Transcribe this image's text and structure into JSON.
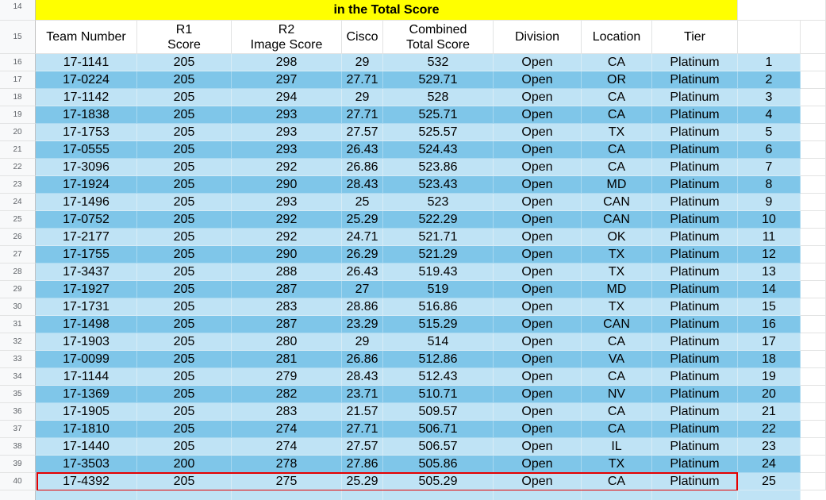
{
  "sheet": {
    "top_banner": "in the Total Score",
    "header_row_number": "15",
    "banner_row_number": "14",
    "headers": [
      "Team Number",
      "R1\nScore",
      "R2\nImage Score",
      "Cisco",
      "Combined\nTotal Score",
      "Division",
      "Location",
      "Tier",
      ""
    ],
    "rows": [
      {
        "num": "16",
        "cells": [
          "17-1141",
          "205",
          "298",
          "29",
          "532",
          "Open",
          "CA",
          "Platinum",
          "1"
        ]
      },
      {
        "num": "17",
        "cells": [
          "17-0224",
          "205",
          "297",
          "27.71",
          "529.71",
          "Open",
          "OR",
          "Platinum",
          "2"
        ]
      },
      {
        "num": "18",
        "cells": [
          "17-1142",
          "205",
          "294",
          "29",
          "528",
          "Open",
          "CA",
          "Platinum",
          "3"
        ]
      },
      {
        "num": "19",
        "cells": [
          "17-1838",
          "205",
          "293",
          "27.71",
          "525.71",
          "Open",
          "CA",
          "Platinum",
          "4"
        ]
      },
      {
        "num": "20",
        "cells": [
          "17-1753",
          "205",
          "293",
          "27.57",
          "525.57",
          "Open",
          "TX",
          "Platinum",
          "5"
        ]
      },
      {
        "num": "21",
        "cells": [
          "17-0555",
          "205",
          "293",
          "26.43",
          "524.43",
          "Open",
          "CA",
          "Platinum",
          "6"
        ]
      },
      {
        "num": "22",
        "cells": [
          "17-3096",
          "205",
          "292",
          "26.86",
          "523.86",
          "Open",
          "CA",
          "Platinum",
          "7"
        ]
      },
      {
        "num": "23",
        "cells": [
          "17-1924",
          "205",
          "290",
          "28.43",
          "523.43",
          "Open",
          "MD",
          "Platinum",
          "8"
        ]
      },
      {
        "num": "24",
        "cells": [
          "17-1496",
          "205",
          "293",
          "25",
          "523",
          "Open",
          "CAN",
          "Platinum",
          "9"
        ]
      },
      {
        "num": "25",
        "cells": [
          "17-0752",
          "205",
          "292",
          "25.29",
          "522.29",
          "Open",
          "CAN",
          "Platinum",
          "10"
        ]
      },
      {
        "num": "26",
        "cells": [
          "17-2177",
          "205",
          "292",
          "24.71",
          "521.71",
          "Open",
          "OK",
          "Platinum",
          "11"
        ]
      },
      {
        "num": "27",
        "cells": [
          "17-1755",
          "205",
          "290",
          "26.29",
          "521.29",
          "Open",
          "TX",
          "Platinum",
          "12"
        ]
      },
      {
        "num": "28",
        "cells": [
          "17-3437",
          "205",
          "288",
          "26.43",
          "519.43",
          "Open",
          "TX",
          "Platinum",
          "13"
        ]
      },
      {
        "num": "29",
        "cells": [
          "17-1927",
          "205",
          "287",
          "27",
          "519",
          "Open",
          "MD",
          "Platinum",
          "14"
        ]
      },
      {
        "num": "30",
        "cells": [
          "17-1731",
          "205",
          "283",
          "28.86",
          "516.86",
          "Open",
          "TX",
          "Platinum",
          "15"
        ]
      },
      {
        "num": "31",
        "cells": [
          "17-1498",
          "205",
          "287",
          "23.29",
          "515.29",
          "Open",
          "CAN",
          "Platinum",
          "16"
        ]
      },
      {
        "num": "32",
        "cells": [
          "17-1903",
          "205",
          "280",
          "29",
          "514",
          "Open",
          "CA",
          "Platinum",
          "17"
        ]
      },
      {
        "num": "33",
        "cells": [
          "17-0099",
          "205",
          "281",
          "26.86",
          "512.86",
          "Open",
          "VA",
          "Platinum",
          "18"
        ]
      },
      {
        "num": "34",
        "cells": [
          "17-1144",
          "205",
          "279",
          "28.43",
          "512.43",
          "Open",
          "CA",
          "Platinum",
          "19"
        ]
      },
      {
        "num": "35",
        "cells": [
          "17-1369",
          "205",
          "282",
          "23.71",
          "510.71",
          "Open",
          "NV",
          "Platinum",
          "20"
        ]
      },
      {
        "num": "36",
        "cells": [
          "17-1905",
          "205",
          "283",
          "21.57",
          "509.57",
          "Open",
          "CA",
          "Platinum",
          "21"
        ]
      },
      {
        "num": "37",
        "cells": [
          "17-1810",
          "205",
          "274",
          "27.71",
          "506.71",
          "Open",
          "CA",
          "Platinum",
          "22"
        ]
      },
      {
        "num": "38",
        "cells": [
          "17-1440",
          "205",
          "274",
          "27.57",
          "506.57",
          "Open",
          "IL",
          "Platinum",
          "23"
        ]
      },
      {
        "num": "39",
        "cells": [
          "17-3503",
          "200",
          "278",
          "27.86",
          "505.86",
          "Open",
          "TX",
          "Platinum",
          "24"
        ]
      },
      {
        "num": "40",
        "cells": [
          "17-4392",
          "205",
          "275",
          "25.29",
          "505.29",
          "Open",
          "CA",
          "Platinum",
          "25"
        ]
      }
    ],
    "highlighted_row": "40",
    "colors": {
      "light_row": "#bfe3f5",
      "dark_row": "#7fc6e9",
      "banner": "#ffff00",
      "highlight_border": "#e50000"
    }
  }
}
